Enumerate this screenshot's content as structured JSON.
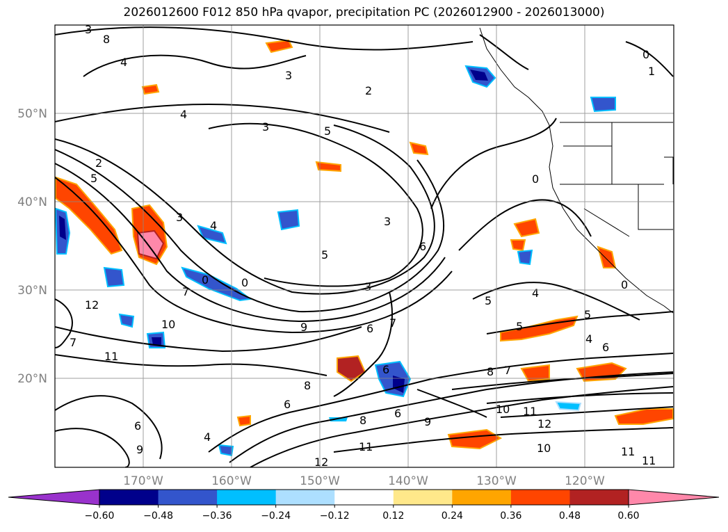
{
  "title": "2026012600 F012 850 hPa qvapor, precipitation PC (2026012900 - 2026013000)",
  "map": {
    "lat_labels": [
      "50°N",
      "40°N",
      "30°N",
      "20°N"
    ],
    "lon_labels": [
      "170°W",
      "160°W",
      "150°W",
      "140°W",
      "130°W",
      "120°W"
    ],
    "gridline_color": "#888888",
    "contour_color": "#000000",
    "contour_labels": [
      "3",
      "8",
      "4",
      "3",
      "2",
      "1",
      "0",
      "4",
      "3",
      "5",
      "2",
      "5",
      "3",
      "4",
      "3",
      "0",
      "7",
      "0",
      "5",
      "3",
      "12",
      "10",
      "9",
      "6",
      "6",
      "7",
      "4",
      "5",
      "5",
      "4",
      "6",
      "11",
      "8",
      "7",
      "6",
      "8",
      "6",
      "6",
      "10",
      "11",
      "12",
      "10",
      "11",
      "11",
      "12",
      "6",
      "4",
      "9",
      "7",
      "11",
      "8",
      "5",
      "9",
      "0",
      "0"
    ]
  },
  "colorbar": {
    "ticks": [
      "−0.60",
      "−0.48",
      "−0.36",
      "−0.24",
      "−0.12",
      "0.12",
      "0.24",
      "0.36",
      "0.48",
      "0.60"
    ],
    "colors": [
      "#9932CC",
      "#00008B",
      "#3355CC",
      "#00BFFF",
      "#ADDFFF",
      "#FFFFFF",
      "#FFE88A",
      "#FFA500",
      "#FF4500",
      "#B22222",
      "#FF88AA",
      "#FF88AA"
    ],
    "under_color": "#9932CC",
    "over_color": "#FF88AA"
  }
}
